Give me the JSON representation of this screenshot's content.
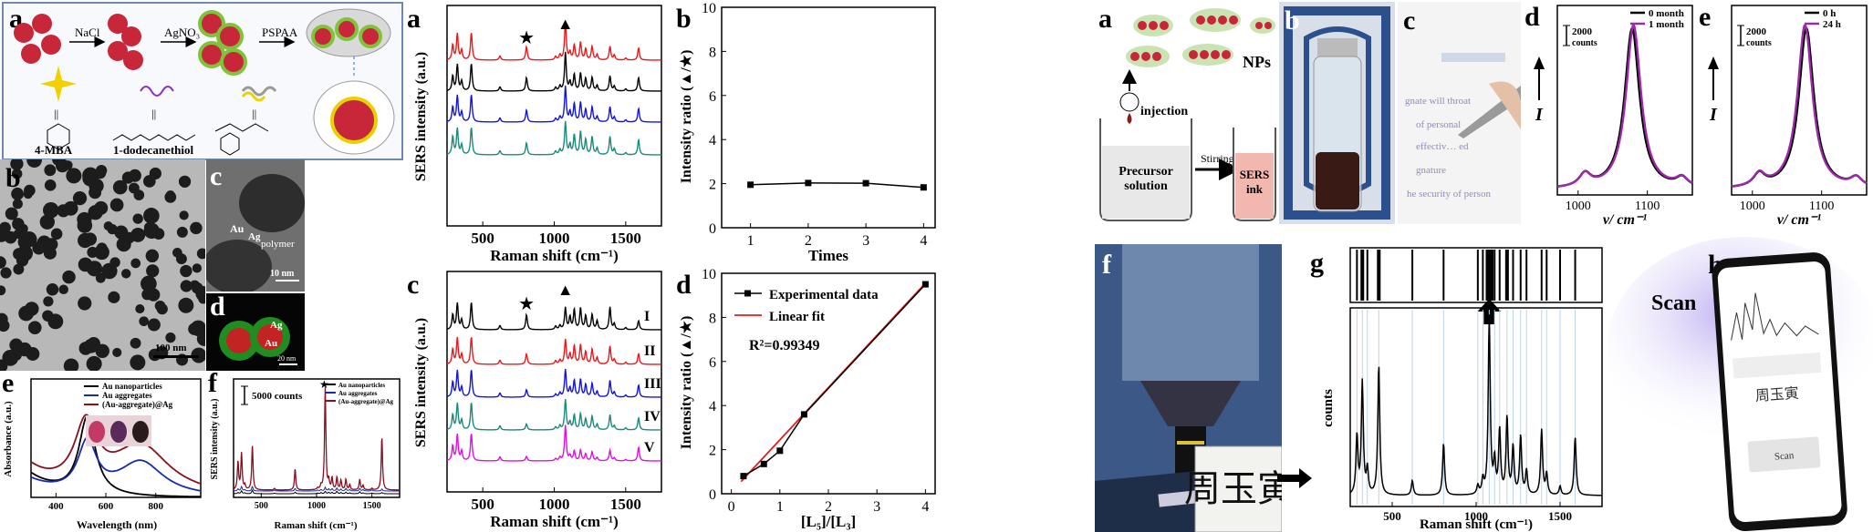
{
  "left": {
    "a": {
      "letter": "a",
      "steps": [
        "NaCl",
        "AgNO₃",
        "PSPAA"
      ],
      "molecules": [
        "4-MBA",
        "1-dodecanethiol"
      ],
      "eq_sign": "||"
    },
    "b": {
      "letter": "b",
      "scale_bar": "100 nm"
    },
    "c": {
      "letter": "c",
      "labels": [
        "Au",
        "Ag",
        "polymer"
      ],
      "scale_bar": "10 nm"
    },
    "d": {
      "letter": "d",
      "labels": [
        "Ag",
        "Au"
      ],
      "scale_bar": "20 nm"
    },
    "e": {
      "letter": "e",
      "chart_data": {
        "type": "line",
        "xlabel": "Wavelength (nm)",
        "ylabel": "Absorbance (a.u.)",
        "xticks": [
          "400",
          "600",
          "800"
        ],
        "xlim": [
          300,
          980
        ],
        "legend": [
          "Au nanoparticles",
          "Au aggregates",
          "(Au-aggregate)@Ag"
        ],
        "series_colors": [
          "#000000",
          "#1a2aa8",
          "#8b0f1f"
        ]
      }
    },
    "f": {
      "letter": "f",
      "chart_data": {
        "type": "line",
        "xlabel": "Raman shift (cm⁻¹)",
        "ylabel": "SERS intensity (a.u.)",
        "xticks": [
          "500",
          "1000",
          "1500"
        ],
        "xlim": [
          250,
          1750
        ],
        "scale": "5000 counts",
        "legend": [
          "Au nanoparticles",
          "Au aggregates",
          "(Au-aggregate)@Ag"
        ],
        "marker": "★",
        "series_colors": [
          "#000000",
          "#1a2aa8",
          "#8b0f1f"
        ]
      }
    }
  },
  "middle": {
    "a": {
      "letter": "a",
      "chart_data": {
        "type": "line",
        "xlabel": "Raman shift (cm⁻¹)",
        "ylabel": "SERS intensity (a.u.)",
        "xticks": [
          "500",
          "1000",
          "1500"
        ],
        "xlim": [
          250,
          1750
        ],
        "markers": [
          "★",
          "▲"
        ],
        "series_colors": [
          "#e8191e",
          "#000000",
          "#1414e0",
          "#1a8a7a"
        ]
      }
    },
    "b": {
      "letter": "b",
      "chart_data": {
        "type": "line",
        "xlabel": "Times",
        "ylabel": "Intensity ratio (▲/★)",
        "xticks": [
          "1",
          "2",
          "3",
          "4"
        ],
        "yticks": [
          "0",
          "2",
          "4",
          "6",
          "8",
          "10"
        ],
        "xlim": [
          0.5,
          4.2
        ],
        "ylim": [
          0,
          10
        ],
        "x": [
          1,
          2,
          3,
          4
        ],
        "y": [
          1.95,
          2.03,
          2.02,
          1.83
        ]
      }
    },
    "c": {
      "letter": "c",
      "chart_data": {
        "type": "line",
        "xlabel": "Raman shift (cm⁻¹)",
        "ylabel": "SERS intensity (a.u.)",
        "xticks": [
          "500",
          "1000",
          "1500"
        ],
        "xlim": [
          250,
          1750
        ],
        "markers": [
          "★",
          "▲"
        ],
        "series_labels": [
          "I",
          "II",
          "III",
          "IV",
          "V"
        ],
        "series_colors": [
          "#000000",
          "#e8191e",
          "#1414e0",
          "#1a8a7a",
          "#e010e0"
        ]
      }
    },
    "d": {
      "letter": "d",
      "chart_data": {
        "type": "line",
        "xlabel": "[L₅]/[L₃]",
        "ylabel": "Intensity ratio (▲/★)",
        "xticks": [
          "0",
          "1",
          "2",
          "3",
          "4"
        ],
        "yticks": [
          "0",
          "2",
          "4",
          "6",
          "8",
          "10"
        ],
        "xlim": [
          -0.2,
          4.2
        ],
        "ylim": [
          0,
          10
        ],
        "legend": [
          "Experimental data",
          "Linear fit"
        ],
        "annotation": "R²=0.99349",
        "x": [
          0.25,
          0.67,
          1.0,
          1.5,
          4.0
        ],
        "y": [
          0.8,
          1.35,
          1.95,
          3.6,
          9.5
        ],
        "fit": {
          "x": [
            0.2,
            4.0
          ],
          "y": [
            0.55,
            9.55
          ]
        },
        "series_colors": [
          "#000000",
          "#e8191e"
        ]
      }
    }
  },
  "right": {
    "a": {
      "letter": "a",
      "np_label": "NPs",
      "injection": "injection",
      "stirring": "Stirring",
      "beaker1": [
        "Precursor",
        "solution"
      ],
      "beaker2": [
        "SERS",
        "ink"
      ]
    },
    "b": {
      "letter": "b"
    },
    "c": {
      "letter": "c",
      "text_lines": [
        "gnate will throat",
        "of personal",
        "effectiv… ed",
        "gnature",
        "he security of person"
      ]
    },
    "d": {
      "letter": "d",
      "chart_data": {
        "type": "line",
        "xlabel": "ν/ cm⁻¹",
        "ylabel": "I",
        "xticks": [
          "1000",
          "1100"
        ],
        "legend": [
          "0 month",
          "1 month"
        ],
        "scale": [
          "2000",
          "counts"
        ],
        "series_colors": [
          "#000000",
          "#9c2aa8"
        ]
      }
    },
    "e": {
      "letter": "e",
      "chart_data": {
        "type": "line",
        "xlabel": "ν/ cm⁻¹",
        "ylabel": "I",
        "xticks": [
          "1000",
          "1100"
        ],
        "legend": [
          "0 h",
          "24 h"
        ],
        "scale": [
          "2000",
          "counts"
        ],
        "series_colors": [
          "#000000",
          "#9c2aa8"
        ]
      }
    },
    "f": {
      "letter": "f",
      "signature": "周玉寅"
    },
    "g": {
      "letter": "g",
      "chart_data": {
        "type": "line",
        "xlabel": "Raman shift (cm⁻¹)",
        "ylabel": "counts",
        "xticks": [
          "500",
          "1000",
          "1500"
        ],
        "xlim": [
          250,
          1750
        ]
      }
    },
    "h": {
      "letter": "h",
      "scan": "Scan",
      "phone_button": "Scan",
      "phone_sig": "周玉寅"
    }
  }
}
